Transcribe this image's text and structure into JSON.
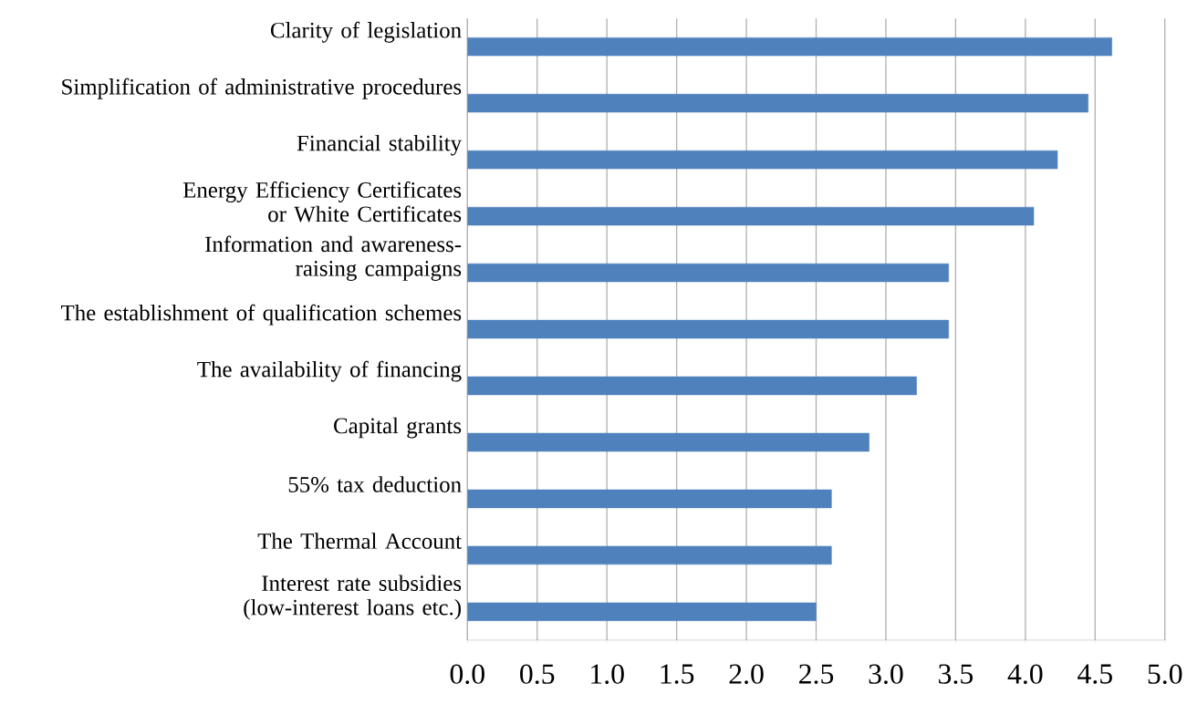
{
  "chart_data": {
    "type": "bar",
    "orientation": "horizontal",
    "categories": [
      "Clarity of legislation",
      "Simplification of administrative procedures",
      "Financial stability",
      "Energy Efficiency Certificates or White Certificates",
      "Information and awareness-raising campaigns",
      "The establishment of qualification schemes",
      "The availability of financing",
      "Capital grants",
      "55% tax deduction",
      "The Thermal Account",
      "Interest rate subsidies (low-interest loans etc.)"
    ],
    "values": [
      4.62,
      4.45,
      4.23,
      4.06,
      3.45,
      3.45,
      3.22,
      2.88,
      2.61,
      2.61,
      2.5
    ],
    "color": "#4f81bd",
    "xlim": [
      0,
      5
    ],
    "xticks": [
      {
        "value": 0,
        "label": "0.0"
      },
      {
        "value": 0.5,
        "label": "0.5"
      },
      {
        "value": 1,
        "label": "1.0"
      },
      {
        "value": 1.5,
        "label": "1.5"
      },
      {
        "value": 2,
        "label": "2.0"
      },
      {
        "value": 2.5,
        "label": "2.5"
      },
      {
        "value": 3,
        "label": "3.0"
      },
      {
        "value": 3.5,
        "label": "3.5"
      },
      {
        "value": 4,
        "label": "4.0"
      },
      {
        "value": 4.5,
        "label": "4.5"
      },
      {
        "value": 5,
        "label": "5.0"
      }
    ],
    "grid": "x"
  }
}
